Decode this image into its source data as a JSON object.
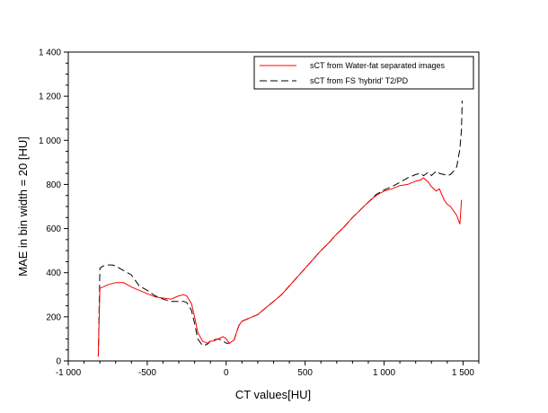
{
  "chart_data": {
    "type": "line",
    "title": "",
    "xlabel": "CT values[HU]",
    "ylabel": "MAE in bin width = 20 [HU]",
    "xlim": [
      -1000,
      1600
    ],
    "ylim": [
      0,
      1400
    ],
    "xticks": [
      -1000,
      -500,
      0,
      500,
      1000,
      1500
    ],
    "xtick_labels": [
      "-1 000",
      "-500",
      "0",
      "500",
      "1 000",
      "1 500"
    ],
    "yticks": [
      0,
      200,
      400,
      600,
      800,
      1000,
      1200,
      1400
    ],
    "ytick_labels": [
      "0",
      "200",
      "400",
      "600",
      "800",
      "1 000",
      "1 200",
      "1 400"
    ],
    "grid": false,
    "legend_position": "top-right",
    "series": [
      {
        "name": "sCT from Water-fat separated images",
        "color": "#ff0000",
        "dash": "solid",
        "x": [
          -810,
          -800,
          -780,
          -750,
          -700,
          -650,
          -600,
          -550,
          -500,
          -450,
          -400,
          -350,
          -300,
          -270,
          -250,
          -220,
          -200,
          -180,
          -150,
          -120,
          -100,
          -80,
          -50,
          -20,
          0,
          20,
          50,
          80,
          100,
          150,
          200,
          250,
          300,
          350,
          400,
          450,
          500,
          550,
          600,
          650,
          700,
          750,
          800,
          850,
          900,
          950,
          1000,
          1050,
          1100,
          1150,
          1200,
          1230,
          1250,
          1280,
          1300,
          1330,
          1350,
          1380,
          1400,
          1420,
          1440,
          1460,
          1480,
          1490
        ],
        "y": [
          20,
          330,
          335,
          345,
          355,
          355,
          335,
          320,
          305,
          290,
          285,
          280,
          295,
          300,
          295,
          260,
          200,
          130,
          90,
          80,
          90,
          90,
          100,
          110,
          100,
          80,
          95,
          160,
          180,
          195,
          210,
          240,
          270,
          300,
          340,
          380,
          420,
          460,
          500,
          535,
          575,
          610,
          650,
          685,
          720,
          750,
          770,
          780,
          795,
          800,
          815,
          820,
          830,
          810,
          790,
          770,
          780,
          730,
          710,
          700,
          680,
          660,
          620,
          730
        ]
      },
      {
        "name": "sCT from FS 'hybrid' T2/PD",
        "color": "#000000",
        "dash": "dashed",
        "x": [
          -810,
          -800,
          -780,
          -750,
          -720,
          -700,
          -650,
          -600,
          -550,
          -500,
          -450,
          -400,
          -350,
          -300,
          -270,
          -250,
          -220,
          -200,
          -180,
          -150,
          -120,
          -100,
          -80,
          -50,
          -20,
          0,
          20,
          50,
          80,
          100,
          150,
          200,
          250,
          300,
          350,
          400,
          450,
          500,
          550,
          600,
          650,
          700,
          750,
          800,
          850,
          900,
          950,
          1000,
          1050,
          1100,
          1150,
          1200,
          1230,
          1250,
          1280,
          1300,
          1330,
          1350,
          1380,
          1400,
          1420,
          1440,
          1460,
          1470,
          1480,
          1490,
          1495
        ],
        "y": [
          20,
          420,
          430,
          435,
          435,
          430,
          410,
          390,
          340,
          320,
          295,
          280,
          270,
          270,
          270,
          265,
          230,
          170,
          100,
          70,
          75,
          90,
          95,
          100,
          90,
          80,
          80,
          95,
          160,
          180,
          195,
          210,
          240,
          270,
          300,
          340,
          380,
          420,
          460,
          500,
          535,
          575,
          610,
          650,
          685,
          720,
          755,
          775,
          790,
          810,
          830,
          845,
          850,
          840,
          855,
          840,
          860,
          850,
          845,
          840,
          845,
          860,
          880,
          920,
          960,
          1050,
          1180
        ]
      }
    ]
  }
}
